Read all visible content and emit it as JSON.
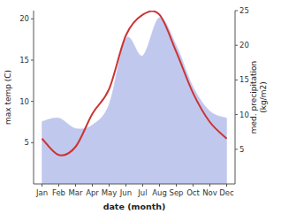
{
  "chart_data": {
    "type": "line",
    "xlabel": "date (month)",
    "ylabel": "max temp (C)",
    "y2label": "med. precipitation\n(kg/m2)",
    "categories": [
      "Jan",
      "Feb",
      "Mar",
      "Apr",
      "May",
      "Jun",
      "Jul",
      "Aug",
      "Sep",
      "Oct",
      "Nov",
      "Dec"
    ],
    "series": [
      {
        "type": "area",
        "axis": "y2",
        "color": "#c0c8ee",
        "values": [
          9.0,
          9.5,
          8.0,
          8.5,
          11.5,
          21.0,
          18.5,
          24.0,
          20.0,
          14.0,
          10.5,
          9.5
        ]
      },
      {
        "type": "line",
        "color": "#cc3333",
        "values": [
          5.5,
          3.5,
          4.5,
          8.5,
          11.5,
          18.0,
          20.5,
          20.5,
          16.0,
          11.0,
          7.5,
          5.5
        ]
      }
    ],
    "ylim": [
      0,
      21
    ],
    "yticks": [
      5,
      10,
      15,
      20
    ],
    "y2lim": [
      0,
      25
    ],
    "y2ticks": [
      5,
      10,
      15,
      20,
      25
    ],
    "grid": false
  }
}
